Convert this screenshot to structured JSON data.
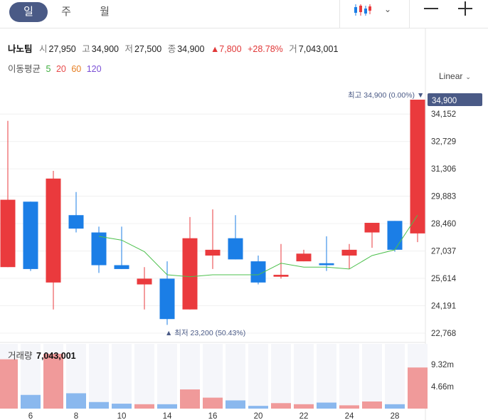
{
  "toolbar": {
    "tabs": [
      {
        "label": "일",
        "active": true
      },
      {
        "label": "주",
        "active": false
      },
      {
        "label": "월",
        "active": false
      }
    ],
    "chart_type_icon": "candlestick-icon",
    "dropdown_icon": "chevron-down-icon",
    "zoom_out_icon": "minus-icon",
    "zoom_in_icon": "plus-icon"
  },
  "quote": {
    "name": "나노팀",
    "open_label": "시",
    "open": "27,950",
    "high_label": "고",
    "high": "34,900",
    "low_label": "저",
    "low": "27,500",
    "close_label": "종",
    "close": "34,900",
    "change": "▲7,800",
    "change_pct": "+28.78%",
    "volume_label": "거",
    "volume": "7,043,001"
  },
  "moving_average": {
    "label": "이동평균",
    "periods": [
      "5",
      "20",
      "60",
      "120"
    ],
    "colors": [
      "#3fae3f",
      "#e84a4a",
      "#e67e22",
      "#7b4fd6"
    ]
  },
  "scale": {
    "label": "Linear",
    "icon": "chevron-down-icon"
  },
  "annotations": {
    "high_note": "최고 34,900 (0.00%) ▼",
    "low_note": "▲ 최저 23,200 (50.43%)",
    "last_price": "34,900"
  },
  "volume_panel": {
    "label": "거래량",
    "value": "7,043,001",
    "ticks": [
      "9.32m",
      "4.66m"
    ]
  },
  "colors": {
    "up": "#ea3a3d",
    "down": "#1b7ee6",
    "up_vol": "#f09a9a",
    "down_vol": "#8ab8ee",
    "accent": "#4a5a86"
  },
  "chart_data": {
    "type": "candlestick",
    "x_labels": [
      "6",
      "8",
      "10",
      "14",
      "16",
      "20",
      "22",
      "24",
      "28"
    ],
    "x_label_index": [
      1,
      3,
      5,
      7,
      9,
      11,
      13,
      15,
      17
    ],
    "y_ticks": [
      "34,152",
      "32,729",
      "31,306",
      "29,883",
      "28,460",
      "27,037",
      "25,614",
      "24,191",
      "22,768"
    ],
    "y_range": [
      22768,
      34900
    ],
    "candles": [
      {
        "o": 26200,
        "h": 33800,
        "l": 26200,
        "c": 29700
      },
      {
        "o": 29600,
        "h": 29600,
        "l": 26000,
        "c": 26100
      },
      {
        "o": 25400,
        "h": 31200,
        "l": 24000,
        "c": 30800
      },
      {
        "o": 28900,
        "h": 30100,
        "l": 28000,
        "c": 28200
      },
      {
        "o": 28000,
        "h": 28300,
        "l": 25900,
        "c": 26300
      },
      {
        "o": 26300,
        "h": 28300,
        "l": 26100,
        "c": 26100
      },
      {
        "o": 25300,
        "h": 26200,
        "l": 24000,
        "c": 25600
      },
      {
        "o": 25600,
        "h": 26500,
        "l": 23200,
        "c": 23500
      },
      {
        "o": 24000,
        "h": 28800,
        "l": 24000,
        "c": 27700
      },
      {
        "o": 26800,
        "h": 29200,
        "l": 26100,
        "c": 27100
      },
      {
        "o": 27700,
        "h": 28900,
        "l": 26600,
        "c": 26600
      },
      {
        "o": 26500,
        "h": 26800,
        "l": 25300,
        "c": 25400
      },
      {
        "o": 25700,
        "h": 27400,
        "l": 25600,
        "c": 25800
      },
      {
        "o": 26500,
        "h": 27100,
        "l": 26500,
        "c": 26900
      },
      {
        "o": 26400,
        "h": 27800,
        "l": 26000,
        "c": 26300
      },
      {
        "o": 26800,
        "h": 27400,
        "l": 26100,
        "c": 27100
      },
      {
        "o": 28000,
        "h": 28500,
        "l": 27200,
        "c": 28500
      },
      {
        "o": 28600,
        "h": 28600,
        "l": 27000,
        "c": 27100
      },
      {
        "o": 27950,
        "h": 34900,
        "l": 27500,
        "c": 34900
      }
    ],
    "ma5": [
      null,
      null,
      null,
      null,
      27800,
      27600,
      27000,
      25800,
      25700,
      25800,
      25800,
      25800,
      26400,
      26200,
      26200,
      26100,
      26800,
      27100,
      28900
    ],
    "volume": [
      0.9,
      0.25,
      1.0,
      0.28,
      0.12,
      0.09,
      0.08,
      0.08,
      0.35,
      0.2,
      0.15,
      0.05,
      0.1,
      0.08,
      0.11,
      0.06,
      0.13,
      0.08,
      0.75
    ],
    "volume_max_label": "9.32m"
  }
}
